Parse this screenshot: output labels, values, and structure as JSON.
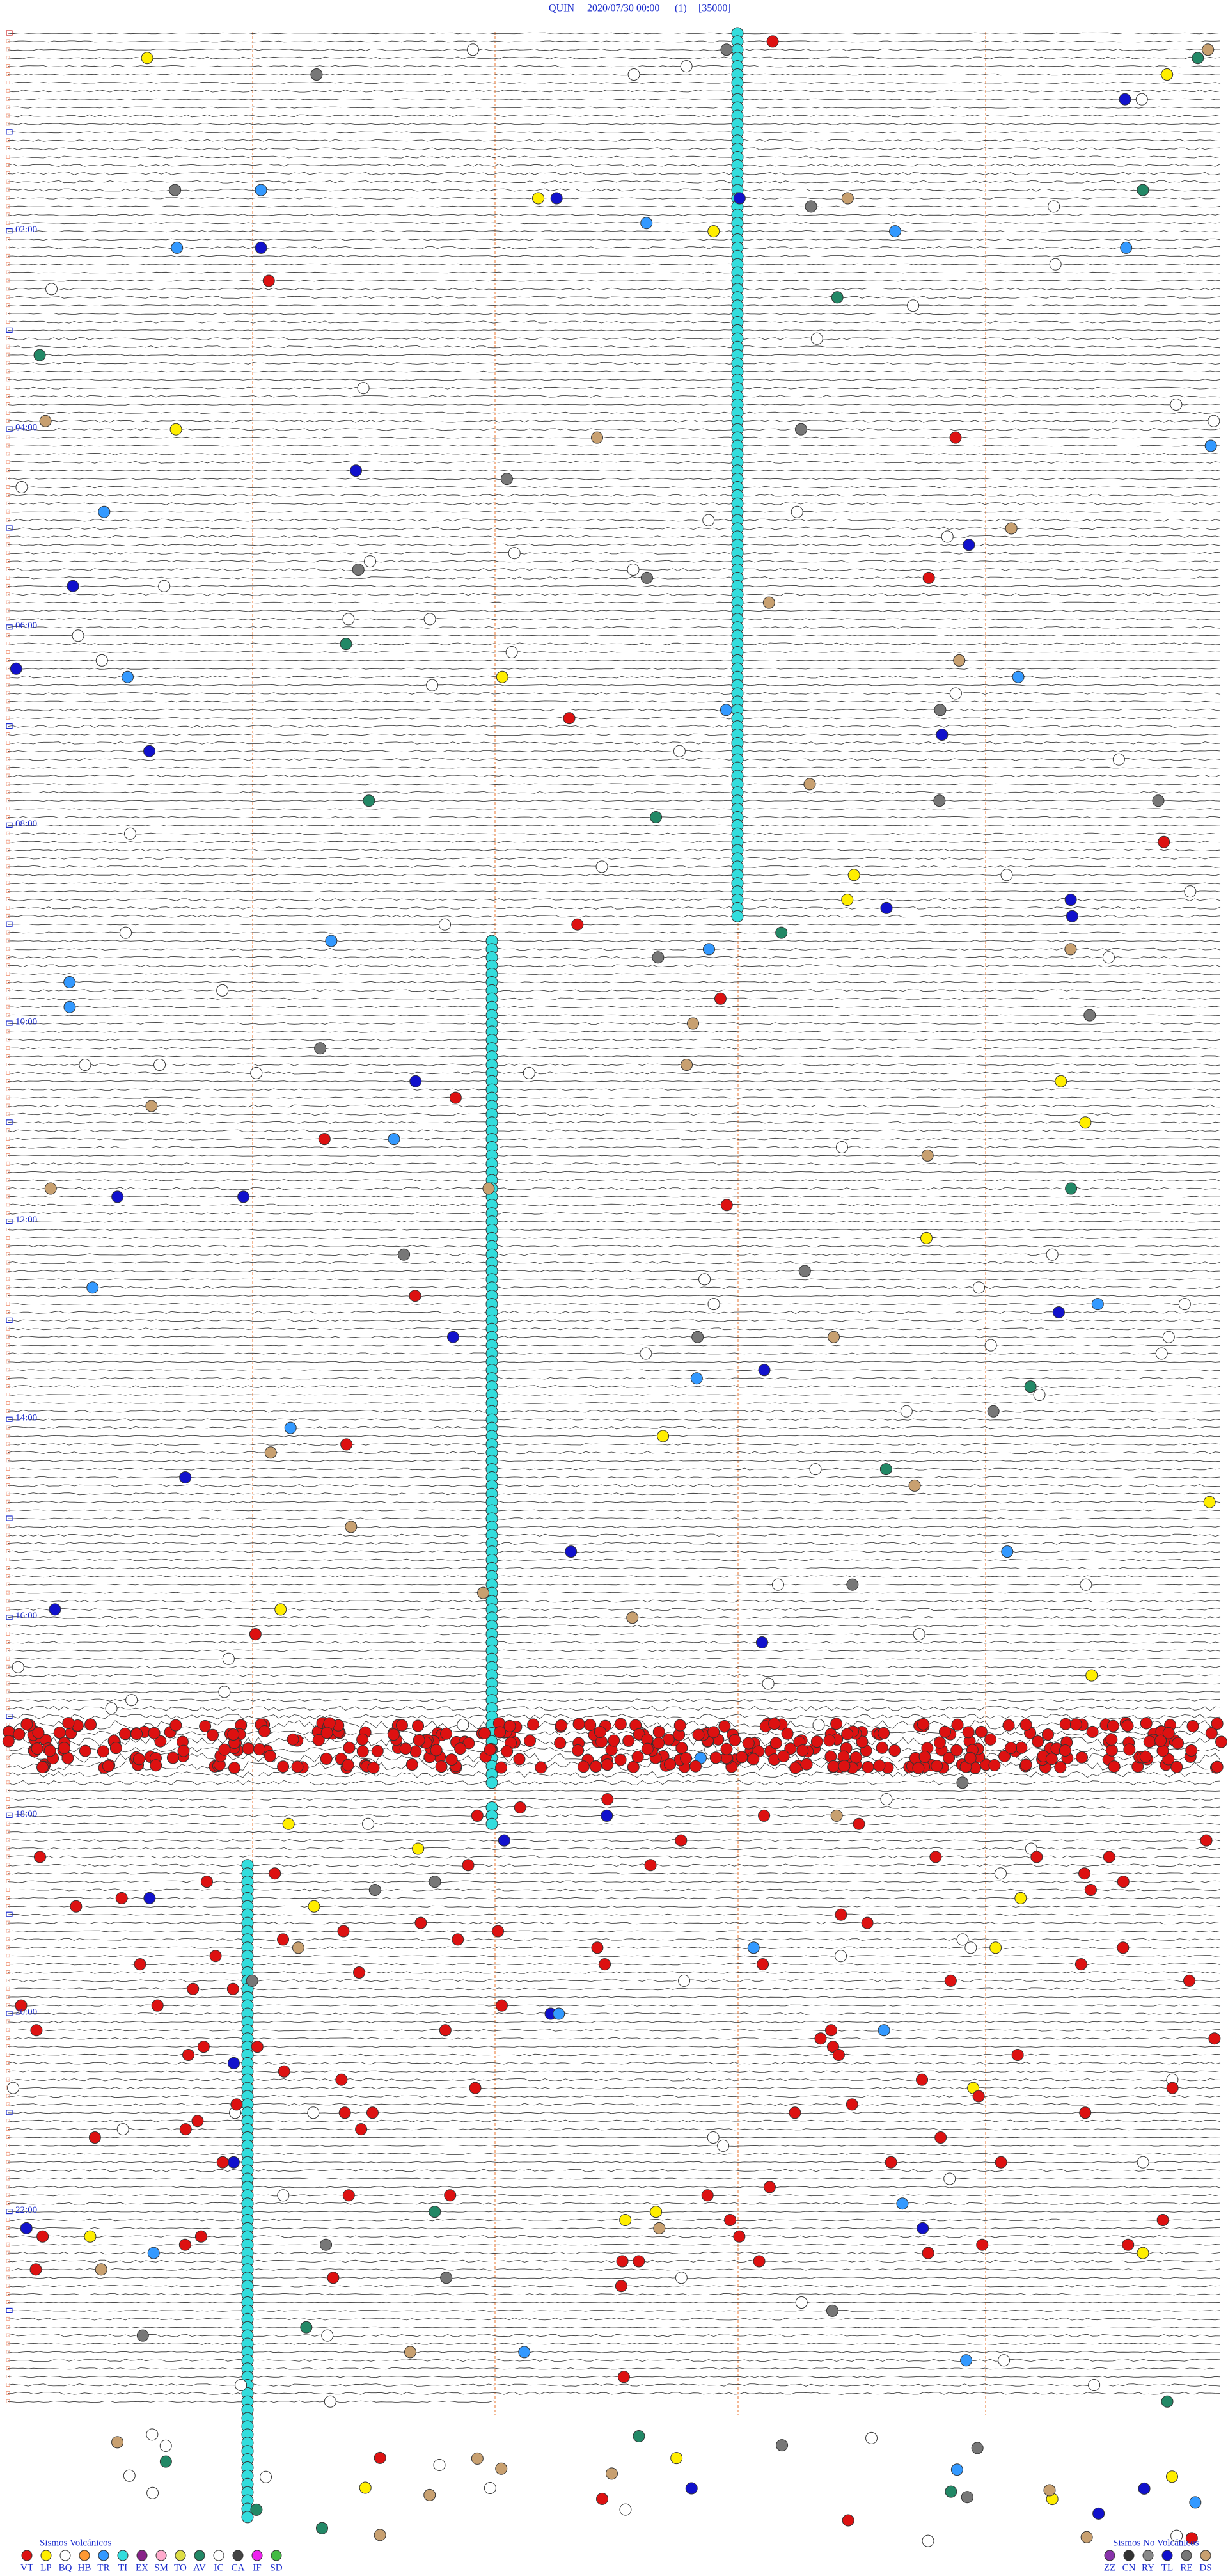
{
  "header": {
    "station": "QUIN",
    "datetime": "2020/07/30 00:00",
    "channel": "(1)",
    "scale": "[35000]"
  },
  "time_labels": [
    "02:00",
    "04:00",
    "06:00",
    "08:00",
    "10:00",
    "12:00",
    "14:00",
    "16:00",
    "18:00",
    "20:00",
    "22:00"
  ],
  "legend": {
    "volcanic": {
      "title": "Sismos Volcánicos",
      "items": [
        {
          "label": "VT",
          "color": "#dd1111"
        },
        {
          "label": "LP",
          "color": "#ffee00"
        },
        {
          "label": "BQ",
          "color": "#ffffff"
        },
        {
          "label": "HB",
          "color": "#ff9933"
        },
        {
          "label": "TR",
          "color": "#3399ff"
        },
        {
          "label": "TI",
          "color": "#33dddd"
        },
        {
          "label": "EX",
          "color": "#882288"
        },
        {
          "label": "SM",
          "color": "#ffaacc"
        },
        {
          "label": "TO",
          "color": "#dddd44"
        },
        {
          "label": "AV",
          "color": "#228866"
        },
        {
          "label": "IC",
          "color": "#ffffff"
        },
        {
          "label": "CA",
          "color": "#444444"
        },
        {
          "label": "IF",
          "color": "#ee22ee"
        },
        {
          "label": "SD",
          "color": "#44bb44"
        }
      ]
    },
    "non_volcanic": {
      "title": "Sismos No Volcánicos",
      "items": [
        {
          "label": "ZZ",
          "color": "#8833aa"
        },
        {
          "label": "CN",
          "color": "#333333"
        },
        {
          "label": "RY",
          "color": "#888888"
        },
        {
          "label": "TL",
          "color": "#1111cc"
        },
        {
          "label": "RE",
          "color": "#777777"
        },
        {
          "label": "DS",
          "color": "#c8a070"
        }
      ]
    }
  }
}
